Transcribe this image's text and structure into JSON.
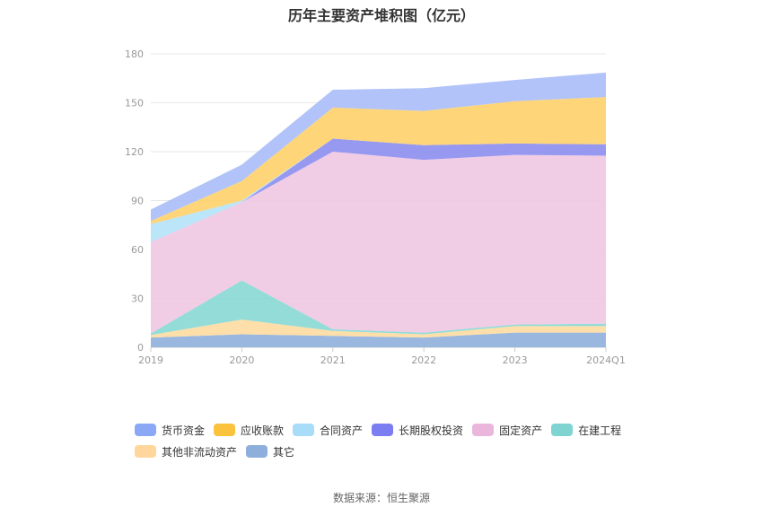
{
  "title": "历年主要资产堆积图（亿元）",
  "source": "数据来源：恒生聚源",
  "chart_data": {
    "type": "area",
    "stacked": true,
    "categories": [
      "2019",
      "2020",
      "2021",
      "2022",
      "2023",
      "2024Q1"
    ],
    "ylim": [
      0,
      180
    ],
    "yticks": [
      0,
      30,
      60,
      90,
      120,
      150,
      180
    ],
    "grid": true,
    "legend_position": "bottom",
    "series": [
      {
        "name": "其它",
        "color": "#8fb0dc",
        "values": [
          6,
          8,
          7,
          6,
          9,
          9
        ]
      },
      {
        "name": "其他非流动资产",
        "color": "#ffdca0",
        "values": [
          1.5,
          9,
          3,
          2,
          4,
          4
        ]
      },
      {
        "name": "在建工程",
        "color": "#88d8d4",
        "values": [
          1,
          24,
          1,
          1,
          1,
          1.5
        ]
      },
      {
        "name": "固定资产",
        "color": "#eec6e2",
        "values": [
          56,
          48,
          109,
          106,
          104,
          103
        ]
      },
      {
        "name": "长期股权投资",
        "color": "#8c8ef0",
        "values": [
          0,
          0,
          8,
          9,
          7,
          7
        ]
      },
      {
        "name": "合同资产",
        "color": "#b4e2f8",
        "values": [
          11,
          1,
          0,
          0,
          0,
          0
        ]
      },
      {
        "name": "应收账款",
        "color": "#ffd06a",
        "values": [
          2,
          12,
          19,
          21,
          26,
          29
        ]
      },
      {
        "name": "货币资金",
        "color": "#a8bdf8",
        "values": [
          7,
          10,
          11,
          14,
          13,
          15
        ]
      }
    ],
    "legend": [
      {
        "name": "货币资金",
        "color": "#8ba8f6"
      },
      {
        "name": "应收账款",
        "color": "#fbc23e"
      },
      {
        "name": "合同资产",
        "color": "#a8dcf8"
      },
      {
        "name": "长期股权投资",
        "color": "#7b7ef0"
      },
      {
        "name": "固定资产",
        "color": "#ebb6dc"
      },
      {
        "name": "在建工程",
        "color": "#7fd3d1"
      },
      {
        "name": "其他非流动资产",
        "color": "#ffd79c"
      },
      {
        "name": "其它",
        "color": "#8eaedc"
      }
    ]
  }
}
